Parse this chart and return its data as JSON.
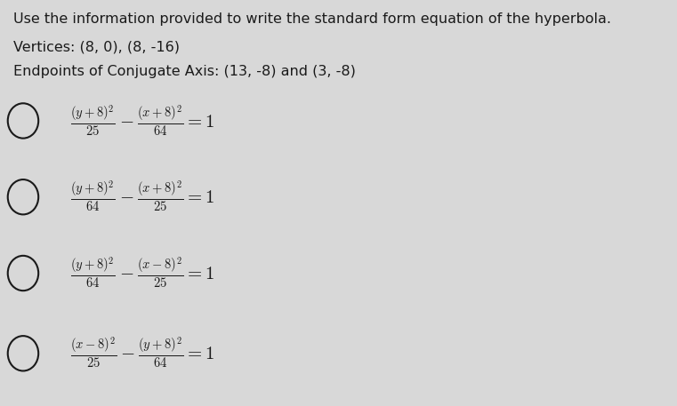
{
  "background_color": "#d8d8d8",
  "title_lines": [
    "Use the information provided to write the standard form equation of the hyperbola.",
    "Vertices: (8, 0), (8, -16)",
    "Endpoints of Conjugate Axis: (13, -8) and (3, -8)"
  ],
  "options": [
    {
      "math": "$\\frac{(y+8)^2}{25} - \\frac{(x+8)^2}{64} = 1$"
    },
    {
      "math": "$\\frac{(y+8)^2}{64} - \\frac{(x+8)^2}{25} = 1$"
    },
    {
      "math": "$\\frac{(y+8)^2}{64} - \\frac{(x-8)^2}{25} = 1$"
    },
    {
      "math": "$\\frac{(x-8)^2}{25} - \\frac{(y+8)^2}{64} = 1$"
    }
  ],
  "text_color": "#1a1a1a",
  "circle_color": "#1a1a1a",
  "font_size_title": 11.5,
  "font_size_eq": 15
}
